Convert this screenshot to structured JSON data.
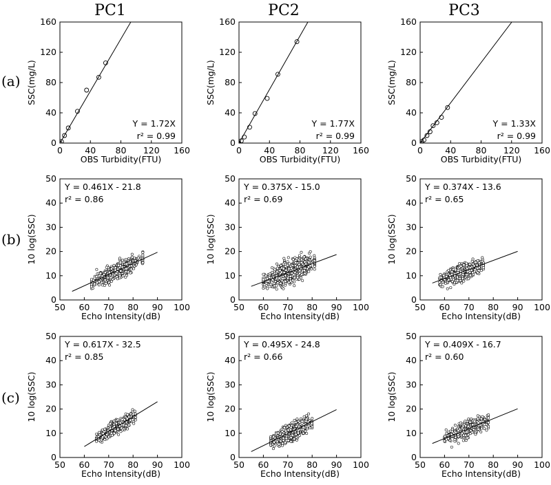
{
  "figure": {
    "column_titles": [
      "PC1",
      "PC2",
      "PC3"
    ],
    "row_labels": [
      "(a)",
      "(b)",
      "(c)"
    ]
  },
  "chart_data": [
    {
      "id": "a-pc1",
      "type": "scatter",
      "xlabel": "OBS Turbidity(FTU)",
      "ylabel": "SSC(mg/L)",
      "xlim": [
        0,
        160
      ],
      "ylim": [
        0,
        160
      ],
      "xticks": [
        0,
        40,
        80,
        120,
        160
      ],
      "yticks": [
        0,
        40,
        80,
        120,
        160
      ],
      "tick_labels_x": [
        "0",
        "40",
        "80",
        "120",
        "160"
      ],
      "tick_labels_y": [
        "0",
        "40",
        "80",
        "120",
        "160"
      ],
      "points": [
        [
          0,
          0
        ],
        [
          2,
          2
        ],
        [
          6,
          10
        ],
        [
          11,
          20
        ],
        [
          23,
          42
        ],
        [
          35,
          70
        ],
        [
          51,
          87
        ],
        [
          60,
          106
        ]
      ],
      "fit": {
        "slope": 1.72,
        "intercept": 0,
        "x_range": [
          0,
          93
        ]
      },
      "equation": "Y = 1.72X",
      "r2_text": "r² = 0.99",
      "eq_pos": "bottom-right"
    },
    {
      "id": "a-pc2",
      "type": "scatter",
      "xlabel": "OBS Turbidity(FTU)",
      "ylabel": "SSC(mg/L)",
      "xlim": [
        0,
        160
      ],
      "ylim": [
        0,
        160
      ],
      "xticks": [
        0,
        40,
        80,
        120,
        160
      ],
      "yticks": [
        0,
        40,
        80,
        120,
        160
      ],
      "tick_labels_x": [
        "0",
        "40",
        "80",
        "120",
        "160"
      ],
      "tick_labels_y": [
        "0",
        "40",
        "80",
        "120",
        "160"
      ],
      "points": [
        [
          0,
          0
        ],
        [
          3,
          3
        ],
        [
          7,
          8
        ],
        [
          14,
          21
        ],
        [
          21,
          39
        ],
        [
          37,
          59
        ],
        [
          51,
          91
        ],
        [
          76,
          134
        ]
      ],
      "fit": {
        "slope": 1.77,
        "intercept": 0,
        "x_range": [
          0,
          90.4
        ]
      },
      "equation": "Y = 1.77X",
      "r2_text": "r² = 0.99",
      "eq_pos": "bottom-right"
    },
    {
      "id": "a-pc3",
      "type": "scatter",
      "xlabel": "OBS Turbidity(FTU)",
      "ylabel": "SSC(mg/L)",
      "xlim": [
        0,
        160
      ],
      "ylim": [
        0,
        160
      ],
      "xticks": [
        0,
        40,
        80,
        120,
        160
      ],
      "yticks": [
        0,
        40,
        80,
        120,
        160
      ],
      "tick_labels_x": [
        "0",
        "40",
        "80",
        "120",
        "160"
      ],
      "tick_labels_y": [
        "0",
        "40",
        "80",
        "120",
        "160"
      ],
      "points": [
        [
          0,
          0
        ],
        [
          2,
          2
        ],
        [
          5,
          4
        ],
        [
          9,
          10
        ],
        [
          13,
          15
        ],
        [
          17,
          23
        ],
        [
          22,
          27
        ],
        [
          28,
          34
        ],
        [
          36,
          47
        ]
      ],
      "fit": {
        "slope": 1.33,
        "intercept": 0,
        "x_range": [
          0,
          120.3
        ]
      },
      "equation": "Y = 1.33X",
      "r2_text": "r² = 0.99",
      "eq_pos": "bottom-right"
    },
    {
      "id": "b-pc1",
      "type": "scatter",
      "xlabel": "Echo Intensity(dB)",
      "ylabel": "10 log(SSC)",
      "xlim": [
        50,
        100
      ],
      "ylim": [
        0,
        50
      ],
      "xticks": [
        50,
        60,
        70,
        80,
        90,
        100
      ],
      "yticks": [
        0,
        10,
        20,
        30,
        40,
        50
      ],
      "tick_labels_x": [
        "50",
        "60",
        "70",
        "80",
        "90",
        "100"
      ],
      "tick_labels_y": [
        "0",
        "10",
        "20",
        "30",
        "40",
        "50"
      ],
      "cloud": {
        "x_range": [
          63,
          84
        ],
        "slope": 0.461,
        "intercept": -21.8,
        "spread": 1.5,
        "n": 600,
        "seed": 11
      },
      "fit": {
        "slope": 0.461,
        "intercept": -21.8,
        "x_range": [
          55,
          90
        ]
      },
      "equation": "Y = 0.461X - 21.8",
      "r2_text": "r² = 0.86",
      "eq_pos": "top-left"
    },
    {
      "id": "b-pc2",
      "type": "scatter",
      "xlabel": "Echo Intensity(dB)",
      "ylabel": "10 log(SSC)",
      "xlim": [
        50,
        100
      ],
      "ylim": [
        0,
        50
      ],
      "xticks": [
        50,
        60,
        70,
        80,
        90,
        100
      ],
      "yticks": [
        0,
        10,
        20,
        30,
        40,
        50
      ],
      "tick_labels_x": [
        "50",
        "60",
        "70",
        "80",
        "90",
        "100"
      ],
      "tick_labels_y": [
        "0",
        "10",
        "20",
        "30",
        "40",
        "50"
      ],
      "cloud": {
        "x_range": [
          60,
          81
        ],
        "slope": 0.375,
        "intercept": -15.0,
        "spread": 2.0,
        "n": 900,
        "seed": 23
      },
      "fit": {
        "slope": 0.375,
        "intercept": -15.0,
        "x_range": [
          55,
          90
        ]
      },
      "equation": "Y = 0.375X - 15.0",
      "r2_text": "r² = 0.69",
      "eq_pos": "top-left"
    },
    {
      "id": "b-pc3",
      "type": "scatter",
      "xlabel": "Echo Intensity(dB)",
      "ylabel": "10 log(SSC)",
      "xlim": [
        50,
        100
      ],
      "ylim": [
        0,
        50
      ],
      "xticks": [
        50,
        60,
        70,
        80,
        90,
        100
      ],
      "yticks": [
        0,
        10,
        20,
        30,
        40,
        50
      ],
      "tick_labels_x": [
        "50",
        "60",
        "70",
        "80",
        "90",
        "100"
      ],
      "tick_labels_y": [
        "0",
        "10",
        "20",
        "30",
        "40",
        "50"
      ],
      "cloud": {
        "x_range": [
          58,
          76
        ],
        "slope": 0.374,
        "intercept": -13.6,
        "spread": 1.6,
        "n": 550,
        "seed": 37
      },
      "fit": {
        "slope": 0.374,
        "intercept": -13.6,
        "x_range": [
          55,
          90
        ]
      },
      "equation": "Y = 0.374X - 13.6",
      "r2_text": "r² = 0.65",
      "eq_pos": "top-left"
    },
    {
      "id": "c-pc1",
      "type": "scatter",
      "xlabel": "Echo Intensity(dB)",
      "ylabel": "10 log(SSC)",
      "xlim": [
        50,
        100
      ],
      "ylim": [
        0,
        50
      ],
      "xticks": [
        50,
        60,
        70,
        80,
        90,
        100
      ],
      "yticks": [
        0,
        10,
        20,
        30,
        40,
        50
      ],
      "tick_labels_x": [
        "50",
        "60",
        "70",
        "80",
        "90",
        "100"
      ],
      "tick_labels_y": [
        "0",
        "10",
        "20",
        "30",
        "40",
        "50"
      ],
      "cloud": {
        "x_range": [
          65,
          81
        ],
        "slope": 0.617,
        "intercept": -32.5,
        "spread": 1.3,
        "n": 550,
        "seed": 41
      },
      "fit": {
        "slope": 0.617,
        "intercept": -32.5,
        "x_range": [
          60,
          90
        ]
      },
      "equation": "Y = 0.617X - 32.5",
      "r2_text": "r² = 0.85",
      "eq_pos": "top-left"
    },
    {
      "id": "c-pc2",
      "type": "scatter",
      "xlabel": "Echo Intensity(dB)",
      "ylabel": "10 log(SSC)",
      "xlim": [
        50,
        100
      ],
      "ylim": [
        0,
        50
      ],
      "xticks": [
        50,
        60,
        70,
        80,
        90,
        100
      ],
      "yticks": [
        0,
        10,
        20,
        30,
        40,
        50
      ],
      "tick_labels_x": [
        "50",
        "60",
        "70",
        "80",
        "90",
        "100"
      ],
      "tick_labels_y": [
        "0",
        "10",
        "20",
        "30",
        "40",
        "50"
      ],
      "cloud": {
        "x_range": [
          63,
          80
        ],
        "slope": 0.495,
        "intercept": -24.8,
        "spread": 1.5,
        "n": 900,
        "seed": 53
      },
      "fit": {
        "slope": 0.495,
        "intercept": -24.8,
        "x_range": [
          55,
          90
        ]
      },
      "equation": "Y = 0.495X - 24.8",
      "r2_text": "r² = 0.66",
      "eq_pos": "top-left"
    },
    {
      "id": "c-pc3",
      "type": "scatter",
      "xlabel": "Echo Intensity(dB)",
      "ylabel": "10 log(SSC)",
      "xlim": [
        50,
        100
      ],
      "ylim": [
        0,
        50
      ],
      "xticks": [
        50,
        60,
        70,
        80,
        90,
        100
      ],
      "yticks": [
        0,
        10,
        20,
        30,
        40,
        50
      ],
      "tick_labels_x": [
        "50",
        "60",
        "70",
        "80",
        "90",
        "100"
      ],
      "tick_labels_y": [
        "0",
        "10",
        "20",
        "30",
        "40",
        "50"
      ],
      "cloud": {
        "x_range": [
          60,
          78
        ],
        "slope": 0.409,
        "intercept": -16.7,
        "spread": 1.4,
        "n": 600,
        "seed": 67
      },
      "fit": {
        "slope": 0.409,
        "intercept": -16.7,
        "x_range": [
          55,
          90
        ]
      },
      "equation": "Y = 0.409X - 16.7",
      "r2_text": "r² = 0.60",
      "eq_pos": "top-left"
    }
  ]
}
